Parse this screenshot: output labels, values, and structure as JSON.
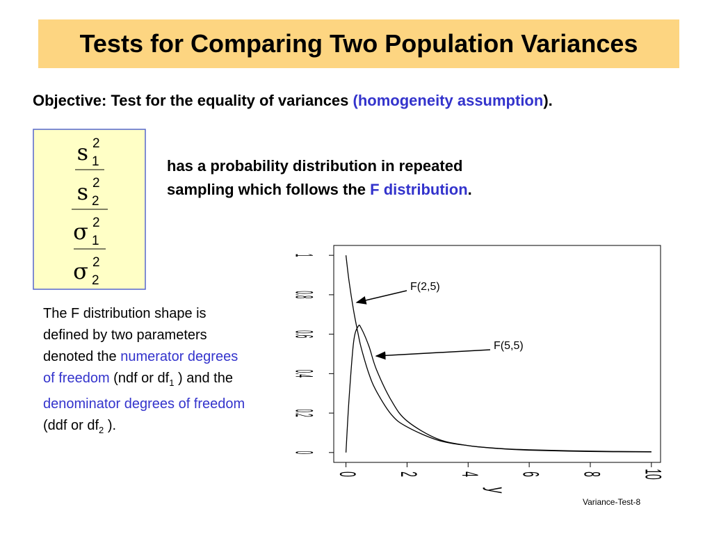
{
  "title": "Tests for Comparing Two Population Variances",
  "objective": {
    "lead": "Objective: Test for the equality of variances ",
    "highlight": "(homogeneity assumption",
    "tail": ")."
  },
  "fraction": [
    {
      "symbol": "s",
      "sub": "1",
      "sup": "2"
    },
    {
      "symbol": "s",
      "sub": "2",
      "sup": "2"
    },
    {
      "symbol": "σ",
      "sub": "1",
      "sup": "2"
    },
    {
      "symbol": "σ",
      "sub": "2",
      "sup": "2"
    }
  ],
  "statement": {
    "line1": "has a probability distribution in repeated",
    "line2": "sampling which follows the ",
    "highlight": "F distribution",
    "tail": "."
  },
  "paragraph": [
    [
      {
        "text": "The F distribution shape is"
      }
    ],
    [
      {
        "text": "defined by two parameters"
      }
    ],
    [
      {
        "text": "denoted the "
      },
      {
        "blue": "numerator degrees"
      }
    ],
    [
      {
        "blue": "of freedom"
      },
      {
        "text": " (ndf or df"
      },
      {
        "sub": "1"
      },
      {
        "text": " ) and the"
      }
    ],
    [
      {
        "blue": "denominator degrees of freedom"
      }
    ],
    [
      {
        "text": "(ddf or df"
      },
      {
        "sub": "2"
      },
      {
        "text": " )."
      }
    ]
  ],
  "footer": "Variance-Test-8",
  "chart_data": {
    "type": "line",
    "x_label": "y",
    "x": [
      0,
      0.1,
      0.25,
      0.4,
      0.5,
      0.75,
      1,
      1.5,
      2,
      3,
      4,
      5,
      6,
      8,
      10
    ],
    "series": [
      {
        "name": "F(2,5)",
        "color": "#000000",
        "values": [
          1,
          0.87,
          0.72,
          0.6,
          0.53,
          0.4,
          0.31,
          0.19,
          0.13,
          0.063,
          0.035,
          0.021,
          0.014,
          0.007,
          0.004
        ]
      },
      {
        "name": "F(5,5)",
        "color": "#000000",
        "values": [
          0,
          0.27,
          0.56,
          0.64,
          0.63,
          0.54,
          0.42,
          0.26,
          0.16,
          0.069,
          0.035,
          0.02,
          0.012,
          0.005,
          0.003
        ]
      }
    ],
    "xlim": [
      -0.4,
      10.3
    ],
    "ylim": [
      -0.05,
      1.05
    ],
    "xticks": [
      0,
      2,
      4,
      6,
      8,
      10
    ],
    "yticks": [
      0,
      0.2,
      0.4,
      0.6,
      0.8,
      1
    ]
  }
}
